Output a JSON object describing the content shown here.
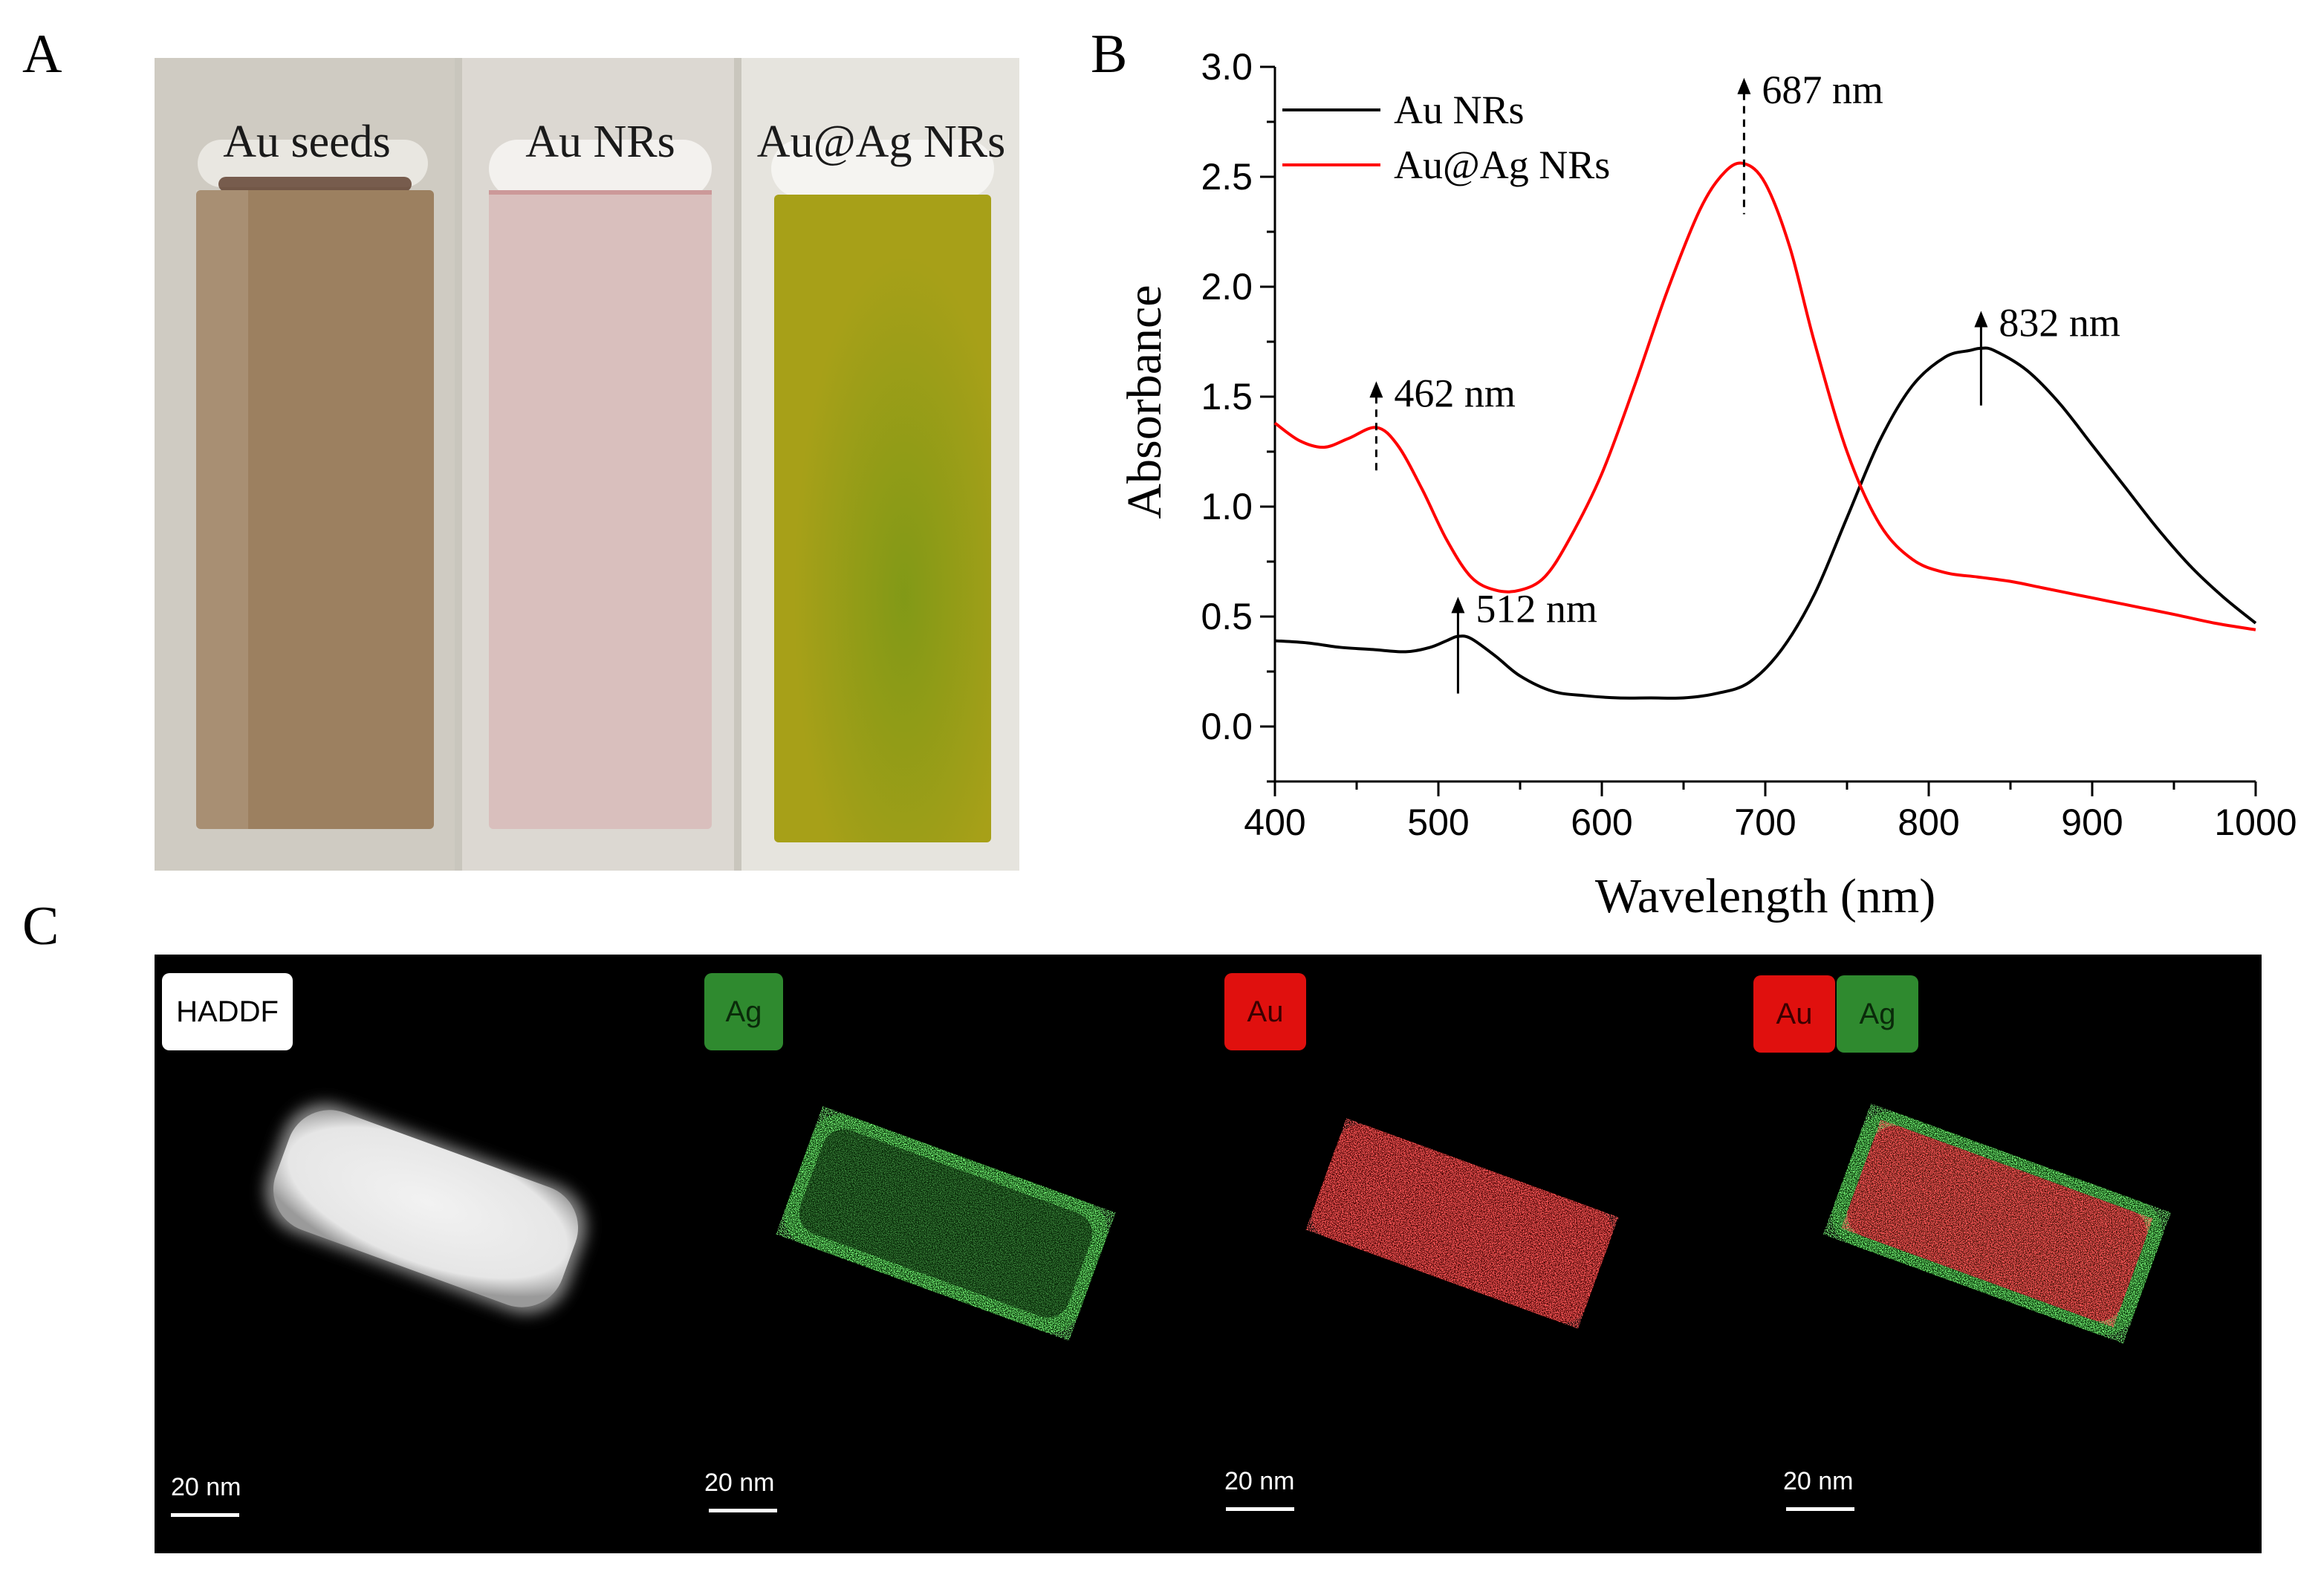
{
  "panel_letters": {
    "a": "A",
    "b": "B",
    "c": "C"
  },
  "panel_a": {
    "cuvettes": [
      {
        "label": "Au seeds",
        "liquid_color": "#9c8060"
      },
      {
        "label": "Au NRs",
        "liquid_color": "#d9bfbd"
      },
      {
        "label": "Au@Ag NRs",
        "liquid_color": "#a7a018"
      }
    ]
  },
  "chart_data": {
    "type": "line",
    "xlabel": "Wavelength (nm)",
    "ylabel": "Absorbance",
    "xlim": [
      400,
      1000
    ],
    "ylim": [
      -0.25,
      3.0
    ],
    "xticks": [
      "400",
      "500",
      "600",
      "700",
      "800",
      "900",
      "1000"
    ],
    "yticks": [
      "0.0",
      "0.5",
      "1.0",
      "1.5",
      "2.0",
      "2.5",
      "3.0"
    ],
    "legend_position": "top-left",
    "series": [
      {
        "name": "Au NRs",
        "color": "#000000",
        "x": [
          400,
          420,
          440,
          460,
          480,
          495,
          505,
          512,
          520,
          535,
          550,
          570,
          590,
          610,
          630,
          650,
          670,
          690,
          710,
          730,
          750,
          770,
          790,
          810,
          825,
          832,
          840,
          860,
          880,
          900,
          920,
          940,
          960,
          980,
          1000
        ],
        "y": [
          0.39,
          0.38,
          0.36,
          0.35,
          0.34,
          0.36,
          0.39,
          0.41,
          0.4,
          0.32,
          0.23,
          0.16,
          0.14,
          0.13,
          0.13,
          0.13,
          0.15,
          0.2,
          0.35,
          0.6,
          0.95,
          1.3,
          1.55,
          1.68,
          1.71,
          1.72,
          1.71,
          1.62,
          1.47,
          1.28,
          1.09,
          0.9,
          0.73,
          0.59,
          0.47
        ]
      },
      {
        "name": "Au@Ag NRs",
        "color": "#ff0000",
        "x": [
          400,
          415,
          430,
          445,
          462,
          475,
          490,
          505,
          520,
          535,
          550,
          565,
          580,
          600,
          620,
          640,
          660,
          675,
          687,
          700,
          715,
          730,
          750,
          770,
          790,
          810,
          830,
          850,
          870,
          890,
          910,
          930,
          950,
          975,
          1000
        ],
        "y": [
          1.38,
          1.3,
          1.27,
          1.31,
          1.36,
          1.28,
          1.08,
          0.85,
          0.68,
          0.62,
          0.62,
          0.68,
          0.85,
          1.15,
          1.55,
          1.98,
          2.35,
          2.52,
          2.56,
          2.47,
          2.18,
          1.75,
          1.25,
          0.92,
          0.76,
          0.7,
          0.68,
          0.66,
          0.63,
          0.6,
          0.57,
          0.54,
          0.51,
          0.47,
          0.44
        ]
      }
    ],
    "annotations": [
      {
        "text": "687 nm",
        "x": 687,
        "y_top": 2.95,
        "y_bottom": 2.33,
        "dashed": true
      },
      {
        "text": "462 nm",
        "x": 462,
        "y_top": 1.57,
        "y_bottom": 1.16,
        "dashed": true
      },
      {
        "text": "832 nm",
        "x": 832,
        "y_top": 1.89,
        "y_bottom": 1.46,
        "dashed": false
      },
      {
        "text": "512 nm",
        "x": 512,
        "y_top": 0.59,
        "y_bottom": 0.15,
        "dashed": false
      }
    ]
  },
  "panel_c": {
    "panels": [
      {
        "badges": [
          {
            "text": "HADDF",
            "bg": "#ffffff",
            "fg": "#000000"
          }
        ],
        "scale": "20 nm"
      },
      {
        "badges": [
          {
            "text": "Ag",
            "bg": "#2f8a2f",
            "fg": "#0a2a0a"
          }
        ],
        "scale": "20 nm"
      },
      {
        "badges": [
          {
            "text": "Au",
            "bg": "#e0100e",
            "fg": "#3a0000"
          }
        ],
        "scale": "20 nm"
      },
      {
        "badges": [
          {
            "text": "Au",
            "bg": "#e0100e",
            "fg": "#3a0000"
          },
          {
            "text": "Ag",
            "bg": "#2f8a2f",
            "fg": "#0a2a0a"
          }
        ],
        "scale": "20 nm"
      }
    ]
  }
}
